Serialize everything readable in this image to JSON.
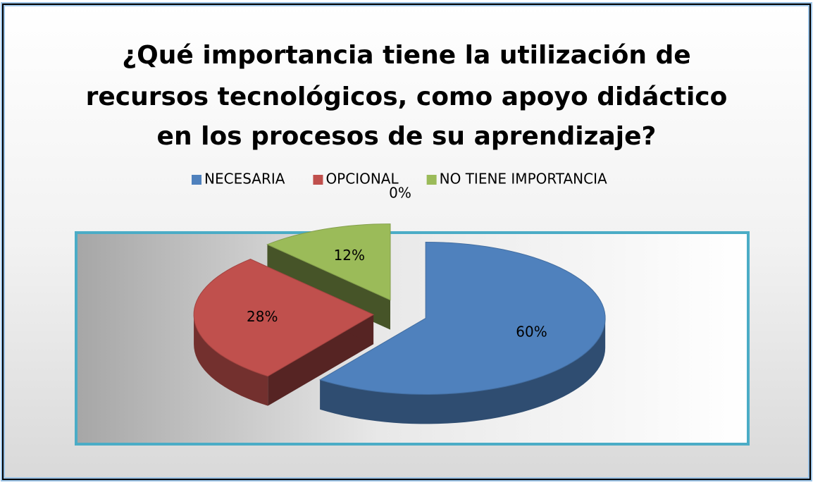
{
  "chart_data": {
    "type": "pie",
    "title": [
      "¿Qué importancia tiene la utilización de",
      "recursos tecnológicos, como apoyo didáctico",
      "en los procesos de su aprendizaje?"
    ],
    "categories": [
      "NECESARIA",
      "OPCIONAL",
      "NO TIENE IMPORTANCIA",
      null
    ],
    "values": [
      60,
      28,
      12,
      0
    ],
    "value_labels": [
      "60%",
      "28%",
      "12%",
      "0%"
    ],
    "colors": [
      "#4f81bd",
      "#c0504d",
      "#9bbb59",
      "#8064a2"
    ],
    "legend": "top"
  }
}
